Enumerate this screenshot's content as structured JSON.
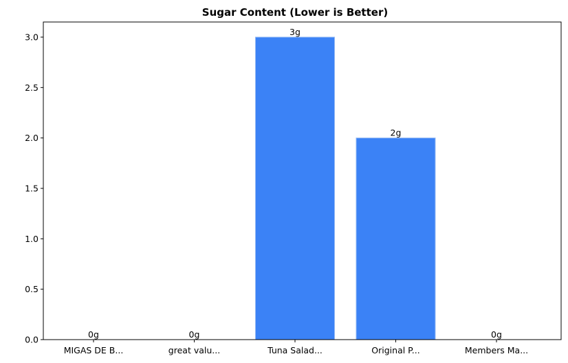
{
  "chart_data": {
    "type": "bar",
    "title": "Sugar Content (Lower is Better)",
    "xlabel": "",
    "ylabel": "",
    "categories": [
      "MIGAS DE B...",
      "great valu...",
      "Tuna Salad...",
      "Original P...",
      "Members Ma..."
    ],
    "values": [
      0,
      0,
      3,
      2,
      0
    ],
    "data_labels": [
      "0g",
      "0g",
      "3g",
      "2g",
      "0g"
    ],
    "ylim": [
      0,
      3.15
    ],
    "yticks": [
      "0.0",
      "0.5",
      "1.0",
      "1.5",
      "2.0",
      "2.5",
      "3.0"
    ],
    "bar_color": "#3b82f6",
    "bar_edge_color": "#93b8f3",
    "grid": false,
    "legend": "none"
  }
}
